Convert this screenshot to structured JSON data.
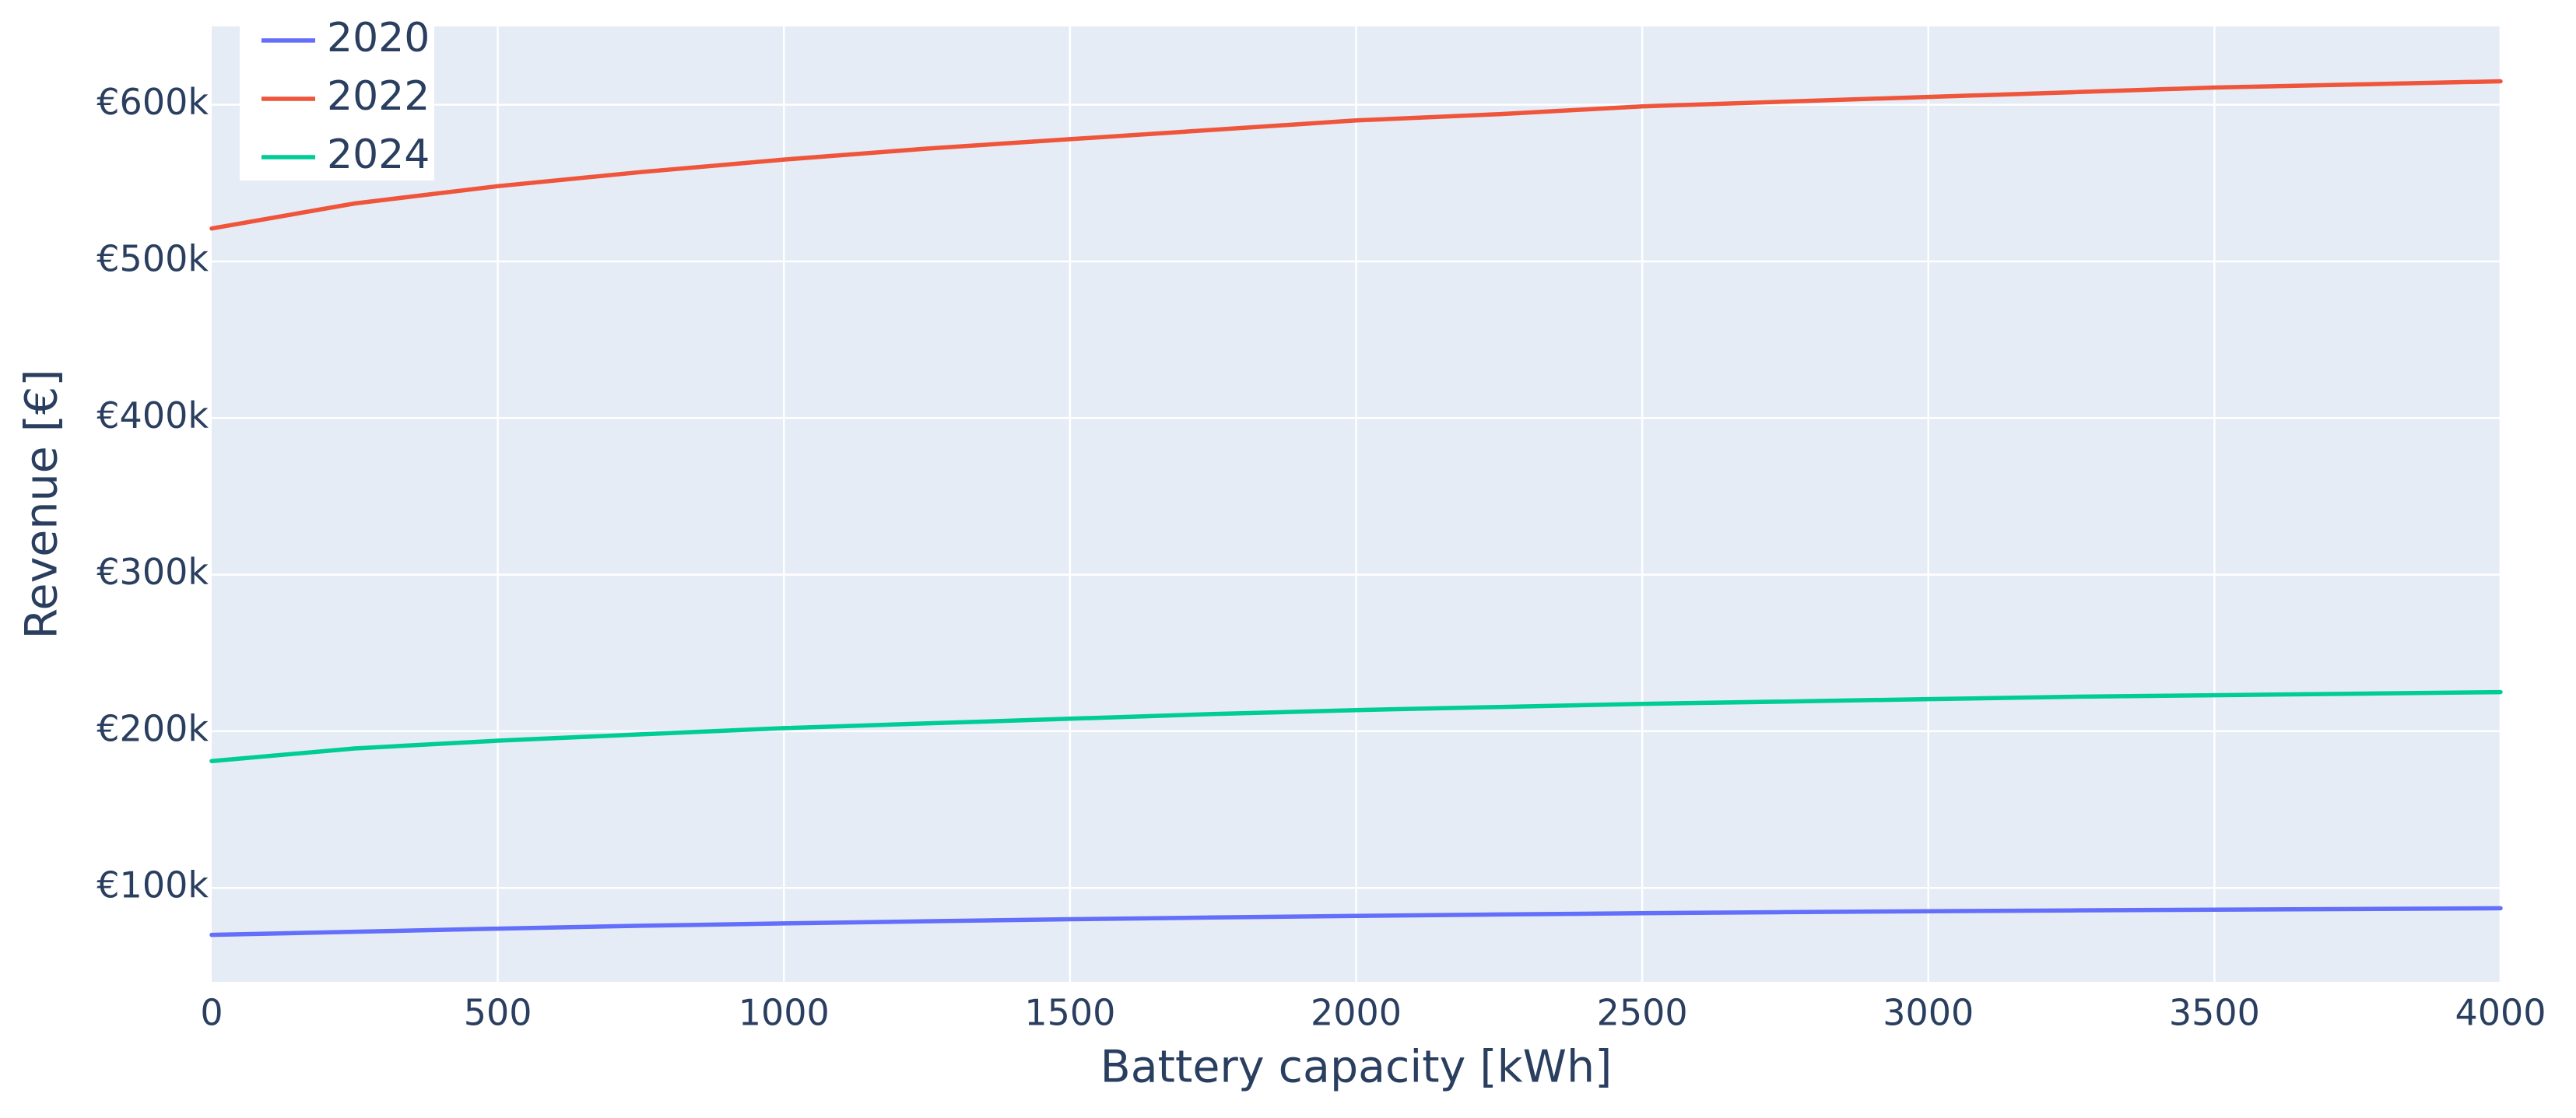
{
  "chart_data": {
    "type": "line",
    "title": "",
    "xlabel": "Battery capacity [kWh]",
    "ylabel": "Revenue [€]",
    "xlim": [
      0,
      4000
    ],
    "ylim": [
      40000,
      650000
    ],
    "x_ticks": [
      0,
      500,
      1000,
      1500,
      2000,
      2500,
      3000,
      3500,
      4000
    ],
    "x_tick_labels": [
      "0",
      "500",
      "1000",
      "1500",
      "2000",
      "2500",
      "3000",
      "3500",
      "4000"
    ],
    "y_ticks": [
      100000,
      200000,
      300000,
      400000,
      500000,
      600000
    ],
    "y_tick_labels": [
      "€100k",
      "€200k",
      "€300k",
      "€400k",
      "€500k",
      "€600k"
    ],
    "grid": true,
    "legend_position": "top-left",
    "x": [
      0,
      250,
      500,
      750,
      1000,
      1250,
      1500,
      1750,
      2000,
      2250,
      2500,
      2750,
      3000,
      3250,
      3500,
      3750,
      4000
    ],
    "series": [
      {
        "name": "2020",
        "color": "#636efa",
        "values": [
          70000,
          72000,
          74000,
          75800,
          77300,
          78700,
          80000,
          81100,
          82100,
          83000,
          83800,
          84500,
          85100,
          85600,
          86100,
          86500,
          87000
        ]
      },
      {
        "name": "2022",
        "color": "#ef553b",
        "values": [
          521000,
          537000,
          548000,
          557000,
          565000,
          572000,
          578000,
          584000,
          590000,
          594000,
          599000,
          602000,
          605000,
          608000,
          611000,
          613000,
          615000
        ]
      },
      {
        "name": "2024",
        "color": "#00cc96",
        "values": [
          181000,
          189000,
          194000,
          198000,
          202000,
          205000,
          208000,
          211000,
          213500,
          215500,
          217500,
          219000,
          220500,
          222000,
          223000,
          224000,
          225000
        ]
      }
    ]
  },
  "colors": {
    "plot_background": "#e5ecf6",
    "grid": "#ffffff",
    "text": "#2a3f5f"
  }
}
